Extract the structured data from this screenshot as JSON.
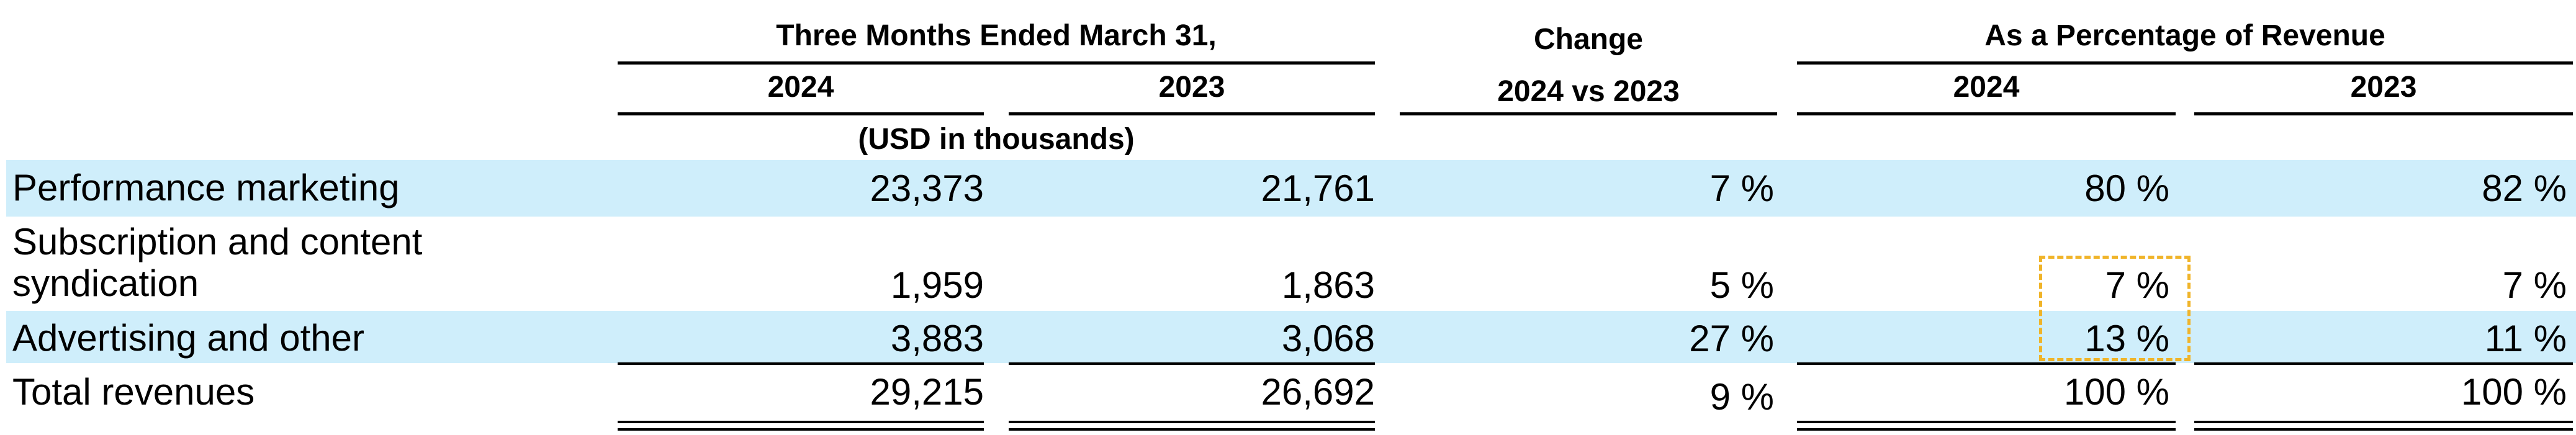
{
  "header": {
    "group_three_months": "Three Months Ended March 31,",
    "change": "Change",
    "change_sub": "2024 vs 2023",
    "pct_revenue": "As a Percentage of Revenue",
    "year_2024": "2024",
    "year_2023": "2023",
    "pct_year_2024": "2024",
    "pct_year_2023": "2023",
    "units": "(USD in thousands)"
  },
  "rows": [
    {
      "label": "Performance marketing",
      "v2024": "23,373",
      "v2023": "21,761",
      "change": "7 %",
      "pct2024": "80 %",
      "pct2023": "82 %"
    },
    {
      "label_line1": "Subscription and content",
      "label_line2": "syndication",
      "v2024": "1,959",
      "v2023": "1,863",
      "change": "5 %",
      "pct2024": "7 %",
      "pct2023": "7 %"
    },
    {
      "label": "Advertising and other",
      "v2024": "3,883",
      "v2023": "3,068",
      "change": "27 %",
      "pct2024": "13 %",
      "pct2023": "11 %"
    },
    {
      "label": "Total revenues",
      "v2024": "29,215",
      "v2023": "26,692",
      "change": "9 %",
      "pct2024": "100 %",
      "pct2023": "100 %"
    }
  ],
  "colors": {
    "band": "#cfeefb",
    "highlight": "#f0b429"
  }
}
